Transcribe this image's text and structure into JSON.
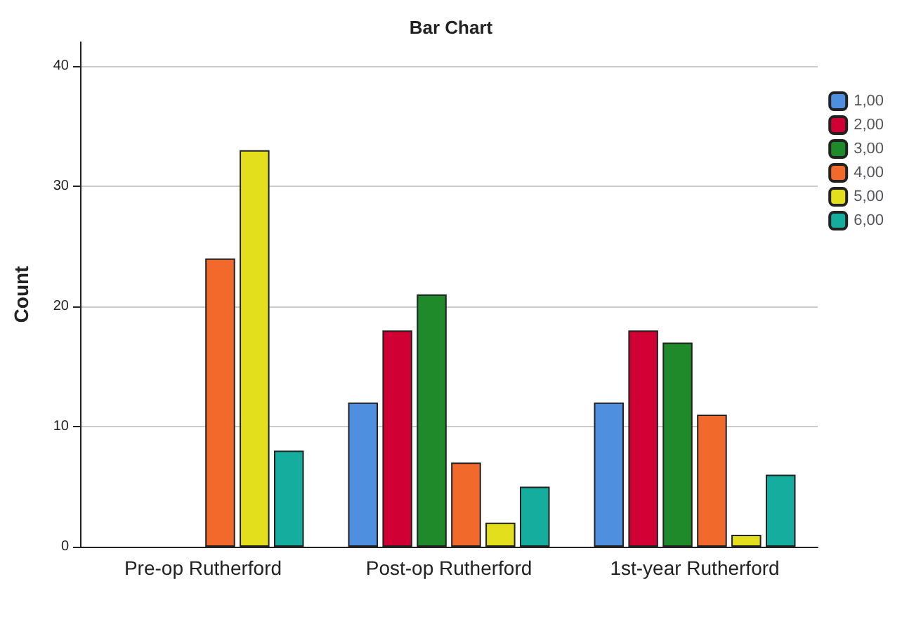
{
  "chart_data": {
    "type": "bar",
    "title": "Bar Chart",
    "ylabel": "Count",
    "categories": [
      "Pre-op Rutherford",
      "Post-op Rutherford",
      "1st-year Rutherford"
    ],
    "series": [
      {
        "name": "1,00",
        "color": "#4f8fe0",
        "values": [
          0,
          12,
          12
        ]
      },
      {
        "name": "2,00",
        "color": "#d10034",
        "values": [
          0,
          18,
          18
        ]
      },
      {
        "name": "3,00",
        "color": "#1f8a2a",
        "values": [
          0,
          21,
          17
        ]
      },
      {
        "name": "4,00",
        "color": "#f2692c",
        "values": [
          24,
          7,
          11
        ]
      },
      {
        "name": "5,00",
        "color": "#e3df1c",
        "values": [
          33,
          2,
          1
        ]
      },
      {
        "name": "6,00",
        "color": "#14ad9e",
        "values": [
          8,
          5,
          6
        ]
      }
    ],
    "ylim": [
      0,
      42
    ],
    "yticks": [
      0,
      10,
      20,
      30,
      40
    ],
    "grid": "y",
    "legend": "top right"
  }
}
